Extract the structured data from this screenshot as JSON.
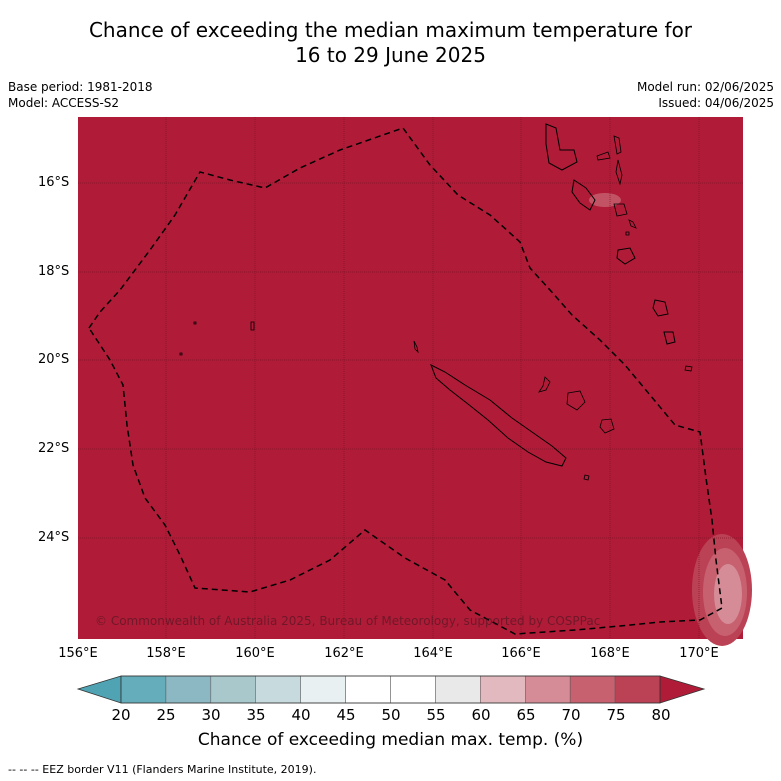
{
  "title": {
    "line1": "Chance of exceeding the median maximum temperature for",
    "line2": "16 to 29 June 2025"
  },
  "meta": {
    "base_period": "Base period: 1981-2018",
    "model": "Model: ACCESS-S2",
    "model_run": "Model run: 02/06/2025",
    "issued": "Issued: 04/06/2025"
  },
  "map": {
    "background_color": "#b01c38",
    "lat_labels": [
      "16°S",
      "18°S",
      "20°S",
      "22°S",
      "24°S"
    ],
    "lon_labels": [
      "156°E",
      "158°E",
      "160°E",
      "162°E",
      "164°E",
      "166°E",
      "168°E",
      "170°E"
    ],
    "copyright": "© Commonwealth of Australia 2025, Bureau of Meteorology, supported by COSPPac"
  },
  "colorbar": {
    "ticks": [
      "20",
      "25",
      "30",
      "35",
      "40",
      "45",
      "50",
      "55",
      "60",
      "65",
      "70",
      "75",
      "80"
    ],
    "colors": [
      "#66adbb",
      "#8cb8c3",
      "#a9c8cc",
      "#c7dade",
      "#e9f0f1",
      "#ffffff",
      "#ffffff",
      "#e9e9e9",
      "#e2b9be",
      "#d58c96",
      "#c76170",
      "#bb4254"
    ],
    "under_color": "#4fa3b3",
    "over_color": "#b01c38",
    "label": "Chance of exceeding median max. temp. (%)"
  },
  "footnote": "--  --  -- EEZ border V11 (Flanders Marine Institute, 2019)."
}
